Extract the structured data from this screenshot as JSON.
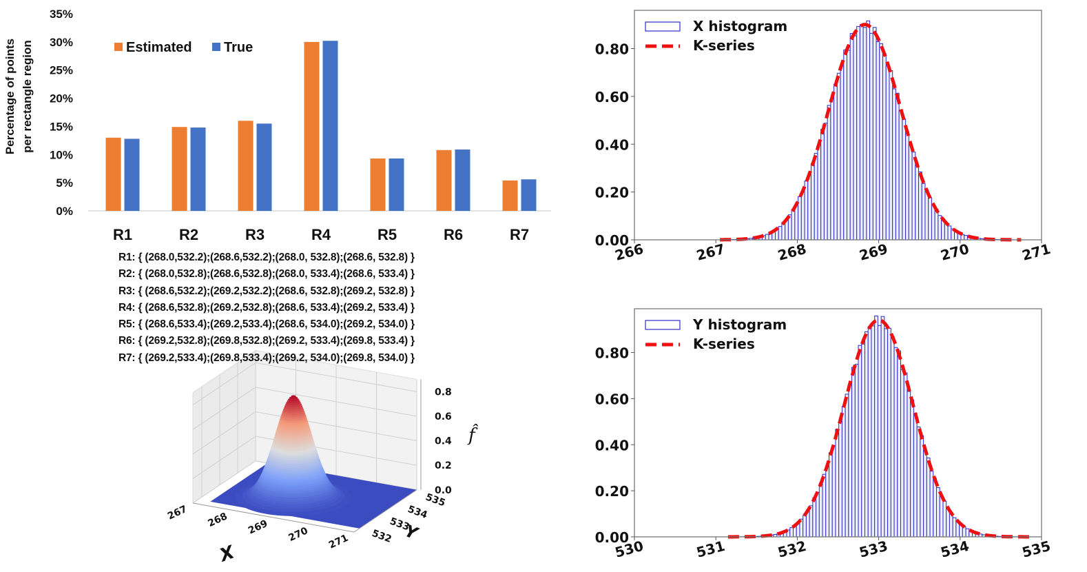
{
  "chart_data": [
    {
      "id": "bar",
      "type": "bar",
      "title": "",
      "xlabel": "",
      "ylabel": "Percentage of points per rectangle region",
      "ylabel_lines": [
        "Percentage of points",
        "per rectangle region"
      ],
      "categories": [
        "R1",
        "R2",
        "R3",
        "R4",
        "R5",
        "R6",
        "R7"
      ],
      "series": [
        {
          "name": "Estimated",
          "color": "#ED7D31",
          "values": [
            13.0,
            14.9,
            16.0,
            30.0,
            9.3,
            10.8,
            5.4
          ]
        },
        {
          "name": "True",
          "color": "#4472C4",
          "values": [
            12.8,
            14.8,
            15.5,
            30.2,
            9.3,
            10.9,
            5.6
          ]
        }
      ],
      "ylim": [
        0,
        35
      ],
      "yticks": [
        0,
        5,
        10,
        15,
        20,
        25,
        30,
        35
      ],
      "ytick_labels": [
        "0%",
        "5%",
        "10%",
        "15%",
        "20%",
        "25%",
        "30%",
        "35%"
      ],
      "grid": false,
      "legend": "top-left"
    },
    {
      "id": "xhist",
      "type": "bar",
      "subtype": "histogram-with-line",
      "series": [
        {
          "name": "X histogram",
          "kind": "histogram",
          "color": "#2B2BC8",
          "mean": 268.83,
          "std": 0.443,
          "bin_width": 0.04,
          "range": [
            267.05,
            270.75
          ]
        },
        {
          "name": "K-series",
          "kind": "line",
          "style": "dashed",
          "color": "#EE1111",
          "mean": 268.83,
          "std": 0.443,
          "range": [
            267.05,
            270.75
          ]
        }
      ],
      "peak_density": 0.9,
      "xlim": [
        266,
        271
      ],
      "ylim": [
        0,
        0.96
      ],
      "xticks": [
        266,
        267,
        268,
        269,
        270,
        271
      ],
      "xtick_labels": [
        "266",
        "267",
        "268",
        "269",
        "270",
        "271"
      ],
      "yticks": [
        0,
        0.2,
        0.4,
        0.6,
        0.8
      ],
      "ytick_labels": [
        "0.00",
        "0.20",
        "0.40",
        "0.60",
        "0.80"
      ],
      "grid": false,
      "legend": "top-left"
    },
    {
      "id": "yhist",
      "type": "bar",
      "subtype": "histogram-with-line",
      "series": [
        {
          "name": "Y histogram",
          "kind": "histogram",
          "color": "#2B2BC8",
          "mean": 533.0,
          "std": 0.424,
          "bin_width": 0.04,
          "range": [
            531.15,
            534.85
          ]
        },
        {
          "name": "K-series",
          "kind": "line",
          "style": "dashed",
          "color": "#EE1111",
          "mean": 533.0,
          "std": 0.424,
          "range": [
            531.15,
            534.85
          ]
        }
      ],
      "peak_density": 0.94,
      "xlim": [
        530,
        535
      ],
      "ylim": [
        0,
        0.99
      ],
      "xticks": [
        530,
        531,
        532,
        533,
        534,
        535
      ],
      "xtick_labels": [
        "530",
        "531",
        "532",
        "533",
        "534",
        "535"
      ],
      "yticks": [
        0,
        0.2,
        0.4,
        0.6,
        0.8
      ],
      "ytick_labels": [
        "0.00",
        "0.20",
        "0.40",
        "0.60",
        "0.80"
      ],
      "grid": false,
      "legend": "top-left"
    },
    {
      "id": "surface3d",
      "type": "surface",
      "xlabel": "X",
      "ylabel": "Y",
      "zlabel": "f̂",
      "xticks": [
        "267",
        "268",
        "269",
        "270",
        "271"
      ],
      "yticks": [
        "532",
        "533",
        "534",
        "535"
      ],
      "zticks": [
        "0.0",
        "0.2",
        "0.4",
        "0.6",
        "0.8"
      ],
      "xlim": [
        267,
        271
      ],
      "ylim": [
        531.5,
        535
      ],
      "zlim": [
        0,
        0.85
      ],
      "peak": {
        "x": 268.83,
        "y": 533.0,
        "z": 0.84
      },
      "colormap": "coolwarm"
    }
  ],
  "regions": [
    "R1: { (268.0,532.2);(268.6,532.2);(268.0, 532.8);(268.6, 532.8) }",
    "R2: { (268.0,532.8);(268.6,532.8);(268.0, 533.4);(268.6, 533.4) }",
    "R3: { (268.6,532.2);(269.2,532.2);(268.6, 532.8);(269.2, 532.8) }",
    "R4: { (268.6,532.8);(269.2,532.8);(268.6, 533.4);(269.2, 533.4) }",
    "R5: { (268.6,533.4);(269.2,533.4);(268.6, 534.0);(269.2, 534.0) }",
    "R6: { (269.2,532.8);(269.8,532.8);(269.2, 533.4);(269.8, 533.4) }",
    "R7: { (269.2,533.4);(269.8,533.4);(269.2, 534.0);(269.8, 534.0) }"
  ]
}
